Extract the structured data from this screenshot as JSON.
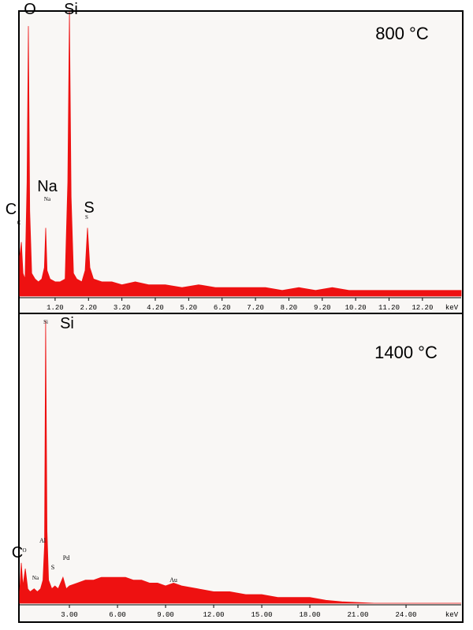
{
  "chart_data": [
    {
      "type": "area",
      "title": "800 °C",
      "color": "#ee1111",
      "xlabel": "keV",
      "xlim": [
        0.14,
        13.36
      ],
      "ylim": [
        0,
        100
      ],
      "xticks": [
        {
          "value": 1.2,
          "label": "1.20"
        },
        {
          "value": 2.2,
          "label": "2.20"
        },
        {
          "value": 3.2,
          "label": "3.20"
        },
        {
          "value": 4.2,
          "label": "4.20"
        },
        {
          "value": 5.2,
          "label": "5.20"
        },
        {
          "value": 6.2,
          "label": "6.20"
        },
        {
          "value": 7.2,
          "label": "7.20"
        },
        {
          "value": 8.2,
          "label": "8.20"
        },
        {
          "value": 9.2,
          "label": "9.20"
        },
        {
          "value": 10.2,
          "label": "10.20"
        },
        {
          "value": 11.2,
          "label": "11.20"
        },
        {
          "value": 12.2,
          "label": "12.20"
        }
      ],
      "annotations": [
        "O",
        "Si",
        "Na",
        "C",
        "S",
        "C",
        "Na",
        "S"
      ],
      "x": [
        0.14,
        0.19,
        0.24,
        0.3,
        0.36,
        0.4,
        0.44,
        0.5,
        0.6,
        0.7,
        0.8,
        0.88,
        0.92,
        0.96,
        1.05,
        1.2,
        1.35,
        1.5,
        1.58,
        1.63,
        1.68,
        1.75,
        1.85,
        2.0,
        2.1,
        2.17,
        2.24,
        2.35,
        2.6,
        2.9,
        3.2,
        3.6,
        4.0,
        4.5,
        5.0,
        5.5,
        6.0,
        6.5,
        7.0,
        7.5,
        8.0,
        8.5,
        9.0,
        9.5,
        10.0,
        10.5,
        11.0,
        11.5,
        12.0,
        12.5,
        13.0,
        13.36
      ],
      "values": [
        14,
        19,
        8,
        6,
        40,
        95,
        30,
        8,
        6,
        5,
        6,
        10,
        24,
        9,
        6,
        5,
        5,
        6,
        40,
        100,
        35,
        8,
        6,
        5,
        9,
        24,
        10,
        6,
        5,
        5,
        4,
        5,
        4,
        4,
        3,
        4,
        3,
        3,
        3,
        3,
        2,
        3,
        2,
        3,
        2,
        2,
        2,
        2,
        2,
        2,
        2,
        2
      ]
    },
    {
      "type": "area",
      "title": "1400 °C",
      "color": "#ee1111",
      "xlabel": "keV",
      "xlim": [
        -0.1,
        27.44
      ],
      "ylim": [
        0,
        100
      ],
      "xticks": [
        {
          "value": 3,
          "label": "3.00"
        },
        {
          "value": 6,
          "label": "6.00"
        },
        {
          "value": 9,
          "label": "9.00"
        },
        {
          "value": 12,
          "label": "12.00"
        },
        {
          "value": 15,
          "label": "15.00"
        },
        {
          "value": 18,
          "label": "18.00"
        },
        {
          "value": 21,
          "label": "21.00"
        },
        {
          "value": 24,
          "label": "24.00"
        }
      ],
      "annotations": [
        "Si",
        "C",
        "Si",
        "O",
        "Al",
        "Pd",
        "S",
        "Na",
        "Au"
      ],
      "x": [
        -0.1,
        0,
        0.1,
        0.25,
        0.4,
        0.55,
        0.8,
        1.0,
        1.2,
        1.35,
        1.45,
        1.52,
        1.6,
        1.7,
        1.9,
        2.1,
        2.3,
        2.6,
        2.8,
        3.0,
        3.5,
        4,
        4.5,
        5,
        5.5,
        6,
        6.5,
        7,
        7.5,
        8,
        8.5,
        9,
        9.5,
        10,
        11,
        12,
        13,
        14,
        15,
        16,
        17,
        18,
        19,
        20,
        22,
        24,
        27.44
      ],
      "values": [
        4,
        14,
        6,
        12,
        5,
        4,
        5,
        4,
        5,
        8,
        20,
        98,
        25,
        8,
        5,
        6,
        5,
        9,
        5,
        6,
        7,
        8,
        8,
        9,
        9,
        9,
        9,
        8,
        8,
        7,
        7,
        6,
        7,
        6,
        5,
        4,
        4,
        3,
        3,
        2,
        2,
        2,
        1,
        0.5,
        0,
        0,
        0
      ]
    }
  ]
}
